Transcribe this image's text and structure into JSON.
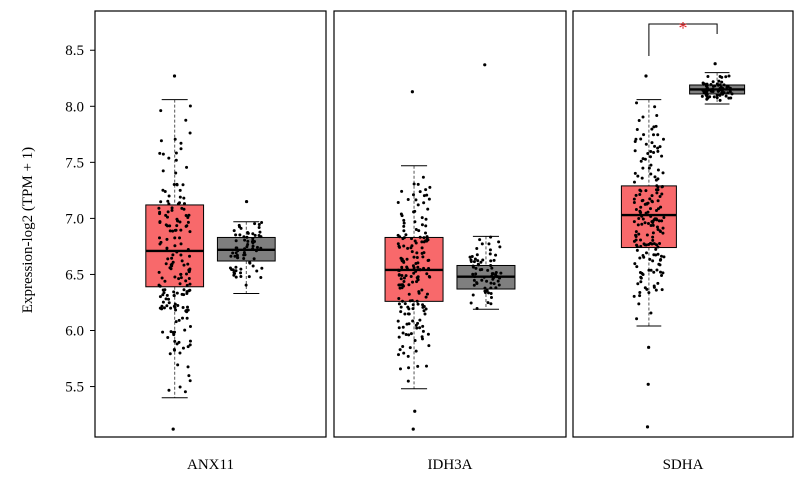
{
  "chart_data": {
    "type": "boxplot",
    "ylabel": "Expression-log2 (TPM + 1)",
    "ylim": [
      5.05,
      8.85
    ],
    "yticks": [
      5.5,
      6.0,
      6.5,
      7.0,
      7.5,
      8.0,
      8.5
    ],
    "ytick_labels": [
      "5.5",
      "6.0",
      "6.5",
      "7.0",
      "7.5",
      "8.0",
      "8.5"
    ],
    "colors": {
      "tumor": "#f8696b",
      "normal": "#7f7f7f"
    },
    "panels": [
      {
        "gene": "ANX11",
        "boxes": [
          {
            "group": "tumor",
            "whisker_low": 5.4,
            "q1": 6.39,
            "median": 6.71,
            "q3": 7.12,
            "whisker_high": 8.06,
            "n_points": 180,
            "outliers": [
              8.27,
              5.12
            ],
            "seed": 11
          },
          {
            "group": "normal",
            "whisker_low": 6.33,
            "q1": 6.62,
            "median": 6.72,
            "q3": 6.83,
            "whisker_high": 6.97,
            "n_points": 70,
            "outliers": [
              7.15
            ],
            "seed": 12
          }
        ],
        "significance": ""
      },
      {
        "gene": "IDH3A",
        "boxes": [
          {
            "group": "tumor",
            "whisker_low": 5.48,
            "q1": 6.26,
            "median": 6.54,
            "q3": 6.83,
            "whisker_high": 7.47,
            "n_points": 180,
            "outliers": [
              8.13,
              5.12,
              5.28
            ],
            "seed": 21
          },
          {
            "group": "normal",
            "whisker_low": 6.19,
            "q1": 6.37,
            "median": 6.48,
            "q3": 6.58,
            "whisker_high": 6.84,
            "n_points": 70,
            "outliers": [
              8.37
            ],
            "seed": 22
          }
        ],
        "significance": ""
      },
      {
        "gene": "SDHA",
        "boxes": [
          {
            "group": "tumor",
            "whisker_low": 6.04,
            "q1": 6.74,
            "median": 7.03,
            "q3": 7.29,
            "whisker_high": 8.06,
            "n_points": 180,
            "outliers": [
              8.27,
              5.52,
              5.14,
              5.85
            ],
            "seed": 31
          },
          {
            "group": "normal",
            "whisker_low": 8.02,
            "q1": 8.11,
            "median": 8.15,
            "q3": 8.19,
            "whisker_high": 8.3,
            "n_points": 70,
            "outliers": [
              8.38
            ],
            "seed": 32
          }
        ],
        "significance": "*"
      }
    ]
  }
}
